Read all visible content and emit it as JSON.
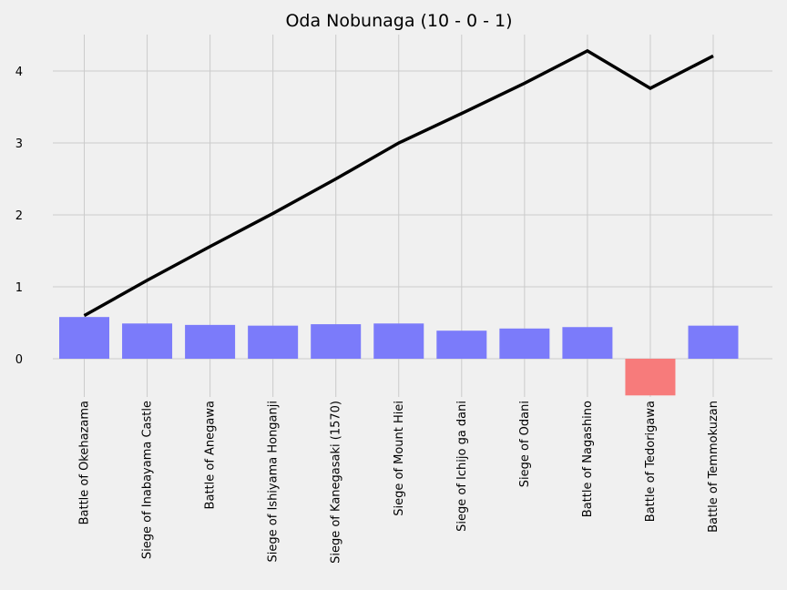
{
  "chart_data": {
    "type": "bar",
    "title": "Oda Nobunaga (10 - 0 - 1)",
    "xlabel": "",
    "ylabel": "",
    "categories": [
      "Battle of Okehazama",
      "Siege of Inabayama Castle",
      "Battle of Anegawa",
      "Siege of Ishiyama Honganji",
      "Siege of Kanegasaki (1570)",
      "Siege of Mount Hiei",
      "Siege of Ichijo ga dani",
      "Siege of Odani",
      "Battle of Nagashino",
      "Battle of Tedorigawa",
      "Battle of Temmokuzan"
    ],
    "series": [
      {
        "type": "bar",
        "values": [
          0.58,
          0.49,
          0.47,
          0.46,
          0.48,
          0.49,
          0.39,
          0.42,
          0.44,
          -0.51,
          0.46
        ],
        "outcome": [
          "win",
          "win",
          "win",
          "win",
          "win",
          "win",
          "win",
          "win",
          "win",
          "loss",
          "win"
        ]
      },
      {
        "type": "line",
        "values": [
          0.6,
          1.09,
          1.56,
          2.02,
          2.5,
          3.0,
          3.41,
          3.83,
          4.28,
          3.76,
          4.21
        ]
      }
    ],
    "ylim": [
      -0.55,
      4.5
    ],
    "yticks": [
      "0",
      "1",
      "2",
      "3",
      "4"
    ],
    "grid": true,
    "legend": "none",
    "colors": {
      "win": "#7b7bfa",
      "loss": "#f77b7b",
      "line": "#000000",
      "background": "#f0f0f0",
      "grid": "#cbcbcb"
    }
  }
}
